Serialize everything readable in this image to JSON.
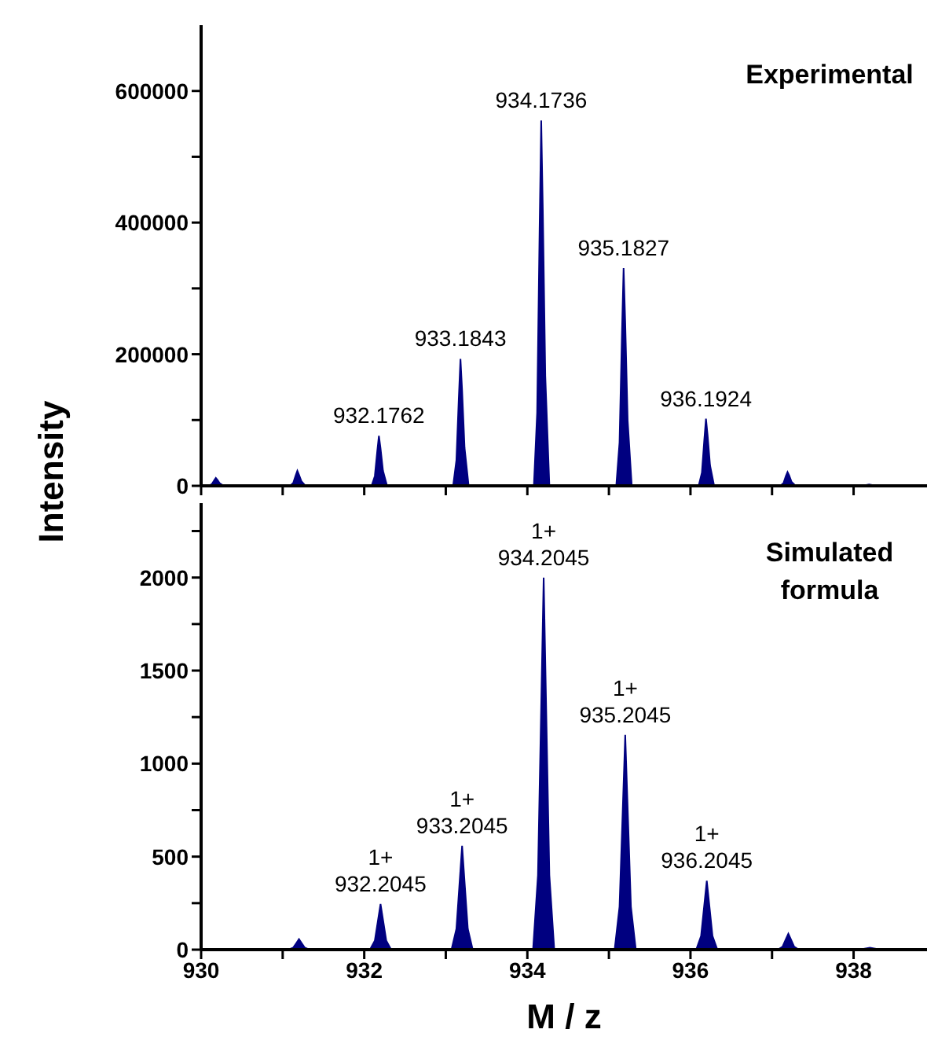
{
  "chart_data": [
    {
      "type": "area",
      "ylabel": "Intensity",
      "annotations": [
        "Experimental",
        {
          "text": "932.1762",
          "x": 932.18,
          "y": 76000
        },
        {
          "text": "933.1843",
          "x": 933.18,
          "y": 193000
        },
        {
          "text": "934.1736",
          "x": 934.17,
          "y": 555000
        },
        {
          "text": "935.1827",
          "x": 935.18,
          "y": 331000
        },
        {
          "text": "936.1924",
          "x": 936.19,
          "y": 102000
        }
      ],
      "xlim": [
        930,
        938.9
      ],
      "xticks": [
        {
          "value": 930,
          "label": null
        },
        {
          "value": 931,
          "label": null
        },
        {
          "value": 932,
          "label": null
        },
        {
          "value": 933,
          "label": null
        },
        {
          "value": 934,
          "label": null
        },
        {
          "value": 935,
          "label": null
        },
        {
          "value": 936,
          "label": null
        },
        {
          "value": 937,
          "label": null
        },
        {
          "value": 938,
          "label": null
        }
      ],
      "ylim": [
        0,
        700000
      ],
      "yticks": [
        0,
        {
          "value": 100000,
          "label": null
        },
        200000,
        {
          "value": 300000,
          "label": null
        },
        400000,
        {
          "value": 500000,
          "label": null
        },
        600000
      ],
      "tick_labels": "y",
      "series": [
        {
          "color": "#000080",
          "x": [
            930,
            930.09,
            930.13,
            930.16,
            930.18,
            930.2,
            930.23,
            930.28,
            931.09,
            931.13,
            931.16,
            931.18,
            931.2,
            931.23,
            931.28,
            932.09,
            932.13,
            932.16,
            932.18,
            932.2,
            932.23,
            932.28,
            933.09,
            933.13,
            933.16,
            933.18,
            933.2,
            933.23,
            933.28,
            934.08,
            934.12,
            934.15,
            934.17,
            934.19,
            934.22,
            934.27,
            935.09,
            935.13,
            935.16,
            935.18,
            935.2,
            935.23,
            935.28,
            936.1,
            936.14,
            936.17,
            936.19,
            936.21,
            936.24,
            936.29,
            937.1,
            937.14,
            937.17,
            937.19,
            937.21,
            937.24,
            937.29,
            938.1,
            938.19,
            938.28,
            938.9
          ],
          "values": [
            0,
            0,
            2400,
            8400,
            12000,
            9000,
            3600,
            0,
            0,
            4600,
            16000,
            23000,
            17000,
            7000,
            0,
            0,
            15000,
            53000,
            76000,
            57000,
            23000,
            0,
            0,
            39000,
            135000,
            193000,
            145000,
            58000,
            0,
            0,
            111000,
            389000,
            555000,
            416000,
            167000,
            0,
            0,
            66000,
            232000,
            331000,
            248000,
            99000,
            0,
            0,
            20000,
            71000,
            102000,
            77000,
            31000,
            0,
            0,
            4000,
            15000,
            21000,
            16000,
            6000,
            0,
            0,
            2000,
            0,
            0
          ]
        }
      ]
    },
    {
      "type": "area",
      "xlabel": "M / z",
      "annotations": [
        "Simulated formula",
        {
          "text": "1+ 932.2045",
          "x": 932.2,
          "y": 245
        },
        {
          "text": "1+ 933.2045",
          "x": 933.2,
          "y": 558
        },
        {
          "text": "1+ 934.2045",
          "x": 934.2,
          "y": 2000
        },
        {
          "text": "1+ 935.2045",
          "x": 935.2,
          "y": 1154
        },
        {
          "text": "1+ 936.2045",
          "x": 936.2,
          "y": 370
        }
      ],
      "xlim": [
        930,
        938.9
      ],
      "xticks": [
        930,
        {
          "value": 931,
          "label": null
        },
        932,
        {
          "value": 933,
          "label": null
        },
        934,
        {
          "value": 935,
          "label": null
        },
        936,
        {
          "value": 937,
          "label": null
        },
        938
      ],
      "ylim": [
        0,
        2400
      ],
      "yticks": [
        0,
        {
          "value": 250,
          "label": null
        },
        500,
        {
          "value": 750,
          "label": null
        },
        1000,
        {
          "value": 1250,
          "label": null
        },
        1500,
        {
          "value": 1750,
          "label": null
        },
        2000,
        {
          "value": 2250,
          "label": null
        }
      ],
      "series": [
        {
          "color": "#000080",
          "x": [
            930,
            931.07,
            931.13,
            931.165,
            931.2,
            931.235,
            931.27,
            931.33,
            932.07,
            932.13,
            932.165,
            932.2,
            932.235,
            932.27,
            932.33,
            933.07,
            933.13,
            933.165,
            933.2,
            933.235,
            933.27,
            933.33,
            934.07,
            934.13,
            934.165,
            934.2,
            934.235,
            934.27,
            934.33,
            935.07,
            935.13,
            935.165,
            935.2,
            935.235,
            935.27,
            935.33,
            936.07,
            936.13,
            936.165,
            936.2,
            936.235,
            936.27,
            936.33,
            937.07,
            937.13,
            937.165,
            937.2,
            937.235,
            937.27,
            937.33,
            938.07,
            938.2,
            938.33,
            938.9
          ],
          "values": [
            0,
            0,
            11,
            34,
            57,
            34,
            11,
            0,
            0,
            49,
            147,
            245,
            147,
            49,
            0,
            0,
            112,
            335,
            558,
            335,
            112,
            0,
            0,
            400,
            1200,
            2000,
            1200,
            400,
            0,
            0,
            231,
            692,
            1154,
            692,
            231,
            0,
            0,
            74,
            222,
            370,
            222,
            74,
            0,
            0,
            17,
            52,
            86,
            52,
            17,
            0,
            0,
            10,
            0,
            0
          ]
        }
      ]
    }
  ]
}
